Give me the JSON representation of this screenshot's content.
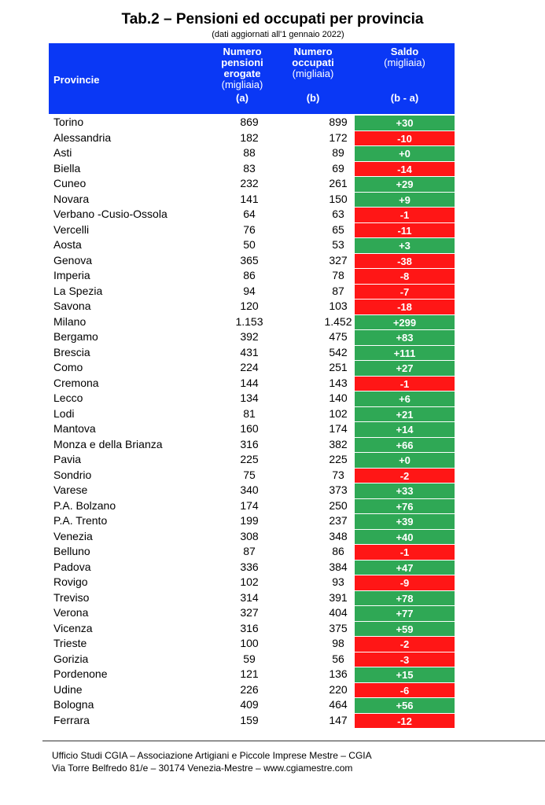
{
  "title": "Tab.2 – Pensioni ed occupati per provincia",
  "subtitle": "(dati aggiornati all'1 gennaio 2022)",
  "header": {
    "provincie": "Provincie",
    "col1_line1": "Numero",
    "col1_line2": "pensioni",
    "col1_line3": "erogate",
    "col1_unit": "(migliaia)",
    "col1_key": "(a)",
    "col2_line1": "Numero",
    "col2_line2": "occupati",
    "col2_unit": "(migliaia)",
    "col2_key": "(b)",
    "col3_line1": "Saldo",
    "col3_unit": "(migliaia)",
    "col3_key": "(b - a)"
  },
  "colors": {
    "header_bg": "#0a38f5",
    "positive": "#2fa855",
    "negative": "#ff1616"
  },
  "rows": [
    {
      "provincia": "Torino",
      "pensioni": "869",
      "occupati": "899",
      "saldo": "+30"
    },
    {
      "provincia": "Alessandria",
      "pensioni": "182",
      "occupati": "172",
      "saldo": "-10"
    },
    {
      "provincia": "Asti",
      "pensioni": "88",
      "occupati": "89",
      "saldo": "+0"
    },
    {
      "provincia": "Biella",
      "pensioni": "83",
      "occupati": "69",
      "saldo": "-14"
    },
    {
      "provincia": "Cuneo",
      "pensioni": "232",
      "occupati": "261",
      "saldo": "+29"
    },
    {
      "provincia": "Novara",
      "pensioni": "141",
      "occupati": "150",
      "saldo": "+9"
    },
    {
      "provincia": "Verbano -Cusio-Ossola",
      "pensioni": "64",
      "occupati": "63",
      "saldo": "-1"
    },
    {
      "provincia": "Vercelli",
      "pensioni": "76",
      "occupati": "65",
      "saldo": "-11"
    },
    {
      "provincia": "Aosta",
      "pensioni": "50",
      "occupati": "53",
      "saldo": "+3"
    },
    {
      "provincia": "Genova",
      "pensioni": "365",
      "occupati": "327",
      "saldo": "-38"
    },
    {
      "provincia": "Imperia",
      "pensioni": "86",
      "occupati": "78",
      "saldo": "-8"
    },
    {
      "provincia": "La Spezia",
      "pensioni": "94",
      "occupati": "87",
      "saldo": "-7"
    },
    {
      "provincia": "Savona",
      "pensioni": "120",
      "occupati": "103",
      "saldo": "-18"
    },
    {
      "provincia": "Milano",
      "pensioni": "1.153",
      "occupati": "1.452",
      "saldo": "+299"
    },
    {
      "provincia": "Bergamo",
      "pensioni": "392",
      "occupati": "475",
      "saldo": "+83"
    },
    {
      "provincia": "Brescia",
      "pensioni": "431",
      "occupati": "542",
      "saldo": "+111"
    },
    {
      "provincia": "Como",
      "pensioni": "224",
      "occupati": "251",
      "saldo": "+27"
    },
    {
      "provincia": "Cremona",
      "pensioni": "144",
      "occupati": "143",
      "saldo": "-1"
    },
    {
      "provincia": "Lecco",
      "pensioni": "134",
      "occupati": "140",
      "saldo": "+6"
    },
    {
      "provincia": "Lodi",
      "pensioni": "81",
      "occupati": "102",
      "saldo": "+21"
    },
    {
      "provincia": "Mantova",
      "pensioni": "160",
      "occupati": "174",
      "saldo": "+14"
    },
    {
      "provincia": "Monza e della Brianza",
      "pensioni": "316",
      "occupati": "382",
      "saldo": "+66"
    },
    {
      "provincia": "Pavia",
      "pensioni": "225",
      "occupati": "225",
      "saldo": "+0"
    },
    {
      "provincia": "Sondrio",
      "pensioni": "75",
      "occupati": "73",
      "saldo": "-2"
    },
    {
      "provincia": "Varese",
      "pensioni": "340",
      "occupati": "373",
      "saldo": "+33"
    },
    {
      "provincia": "P.A. Bolzano",
      "pensioni": "174",
      "occupati": "250",
      "saldo": "+76"
    },
    {
      "provincia": "P.A. Trento",
      "pensioni": "199",
      "occupati": "237",
      "saldo": "+39"
    },
    {
      "provincia": "Venezia",
      "pensioni": "308",
      "occupati": "348",
      "saldo": "+40"
    },
    {
      "provincia": "Belluno",
      "pensioni": "87",
      "occupati": "86",
      "saldo": "-1"
    },
    {
      "provincia": "Padova",
      "pensioni": "336",
      "occupati": "384",
      "saldo": "+47"
    },
    {
      "provincia": "Rovigo",
      "pensioni": "102",
      "occupati": "93",
      "saldo": "-9"
    },
    {
      "provincia": "Treviso",
      "pensioni": "314",
      "occupati": "391",
      "saldo": "+78"
    },
    {
      "provincia": "Verona",
      "pensioni": "327",
      "occupati": "404",
      "saldo": "+77"
    },
    {
      "provincia": "Vicenza",
      "pensioni": "316",
      "occupati": "375",
      "saldo": "+59"
    },
    {
      "provincia": "Trieste",
      "pensioni": "100",
      "occupati": "98",
      "saldo": "-2"
    },
    {
      "provincia": "Gorizia",
      "pensioni": "59",
      "occupati": "56",
      "saldo": "-3"
    },
    {
      "provincia": "Pordenone",
      "pensioni": "121",
      "occupati": "136",
      "saldo": "+15"
    },
    {
      "provincia": "Udine",
      "pensioni": "226",
      "occupati": "220",
      "saldo": "-6"
    },
    {
      "provincia": "Bologna",
      "pensioni": "409",
      "occupati": "464",
      "saldo": "+56"
    },
    {
      "provincia": "Ferrara",
      "pensioni": "159",
      "occupati": "147",
      "saldo": "-12"
    }
  ],
  "footer": {
    "line1": "Ufficio Studi CGIA – Associazione Artigiani e Piccole Imprese Mestre – CGIA",
    "line2": "Via Torre Belfredo 81/e – 30174 Venezia-Mestre – www.cgiamestre.com"
  }
}
